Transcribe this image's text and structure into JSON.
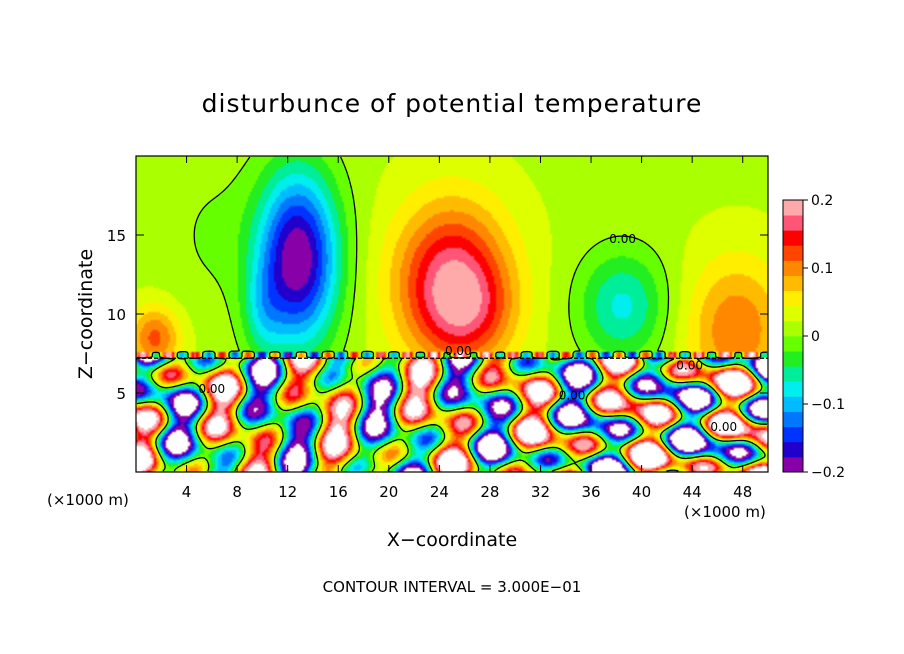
{
  "chart_data": {
    "type": "heatmap",
    "title": "disturbunce of potential temperature",
    "xlabel": "X−coordinate",
    "ylabel": "Z−coordinate",
    "x_unit_left": "(×1000 m)",
    "x_unit_right": "(×1000 m)",
    "footer": "CONTOUR INTERVAL = 3.000E−01",
    "xlim": [
      0,
      50
    ],
    "ylim": [
      0,
      20
    ],
    "x_ticks": [
      {
        "value": 4,
        "label": "4"
      },
      {
        "value": 8,
        "label": "8"
      },
      {
        "value": 12,
        "label": "12"
      },
      {
        "value": 16,
        "label": "16"
      },
      {
        "value": 20,
        "label": "20"
      },
      {
        "value": 24,
        "label": "24"
      },
      {
        "value": 28,
        "label": "28"
      },
      {
        "value": 32,
        "label": "32"
      },
      {
        "value": 36,
        "label": "36"
      },
      {
        "value": 40,
        "label": "40"
      },
      {
        "value": 44,
        "label": "44"
      },
      {
        "value": 48,
        "label": "48"
      }
    ],
    "y_ticks": [
      {
        "value": 5,
        "label": "5"
      },
      {
        "value": 10,
        "label": "10"
      },
      {
        "value": 15,
        "label": "15"
      }
    ],
    "colorbar": {
      "min": -0.2,
      "max": 0.2,
      "ticks": [
        {
          "value": 0.2,
          "label": "0.2"
        },
        {
          "value": 0.1,
          "label": "0.1"
        },
        {
          "value": 0,
          "label": "0"
        },
        {
          "value": -0.1,
          "label": "−0.1"
        },
        {
          "value": -0.2,
          "label": "−0.2"
        }
      ],
      "colors": [
        "#8800a8",
        "#2200cc",
        "#0033ff",
        "#0077ff",
        "#00bbff",
        "#00eeee",
        "#00ee99",
        "#22ee22",
        "#66ff00",
        "#aaff00",
        "#ddff00",
        "#ffee00",
        "#ffbb00",
        "#ff8800",
        "#ff4400",
        "#ff0000",
        "#ff5577",
        "#ffaaaa"
      ]
    },
    "contour_labels": [
      {
        "x": 38.5,
        "y": 14.5,
        "text": "0.00"
      },
      {
        "x": 25.5,
        "y": 7.4,
        "text": "0.00"
      },
      {
        "x": 34.5,
        "y": 4.6,
        "text": "0.00"
      },
      {
        "x": 6.0,
        "y": 5.0,
        "text": "0.00"
      },
      {
        "x": 43.8,
        "y": 6.5,
        "text": "0.00"
      },
      {
        "x": 46.5,
        "y": 2.6,
        "text": "0.00"
      }
    ],
    "blobs": [
      {
        "x": 12.8,
        "y": 13.5,
        "sx": 3.2,
        "sy": 5.5,
        "v": -0.22
      },
      {
        "x": 10.0,
        "y": 10.0,
        "sx": 1.6,
        "sy": 3.0,
        "v": -0.05
      },
      {
        "x": 25.0,
        "y": 12.0,
        "sx": 4.5,
        "sy": 5.0,
        "v": 0.16
      },
      {
        "x": 26.5,
        "y": 10.0,
        "sx": 3.5,
        "sy": 3.0,
        "v": 0.05
      },
      {
        "x": 38.5,
        "y": 10.5,
        "sx": 3.5,
        "sy": 3.5,
        "v": -0.09
      },
      {
        "x": 47.5,
        "y": 9.0,
        "sx": 4.0,
        "sy": 4.5,
        "v": 0.09
      },
      {
        "x": 1.5,
        "y": 8.5,
        "sx": 2.0,
        "sy": 2.0,
        "v": 0.1
      },
      {
        "x": 6.0,
        "y": 15.0,
        "sx": 4.0,
        "sy": 5.0,
        "v": -0.02
      }
    ]
  }
}
